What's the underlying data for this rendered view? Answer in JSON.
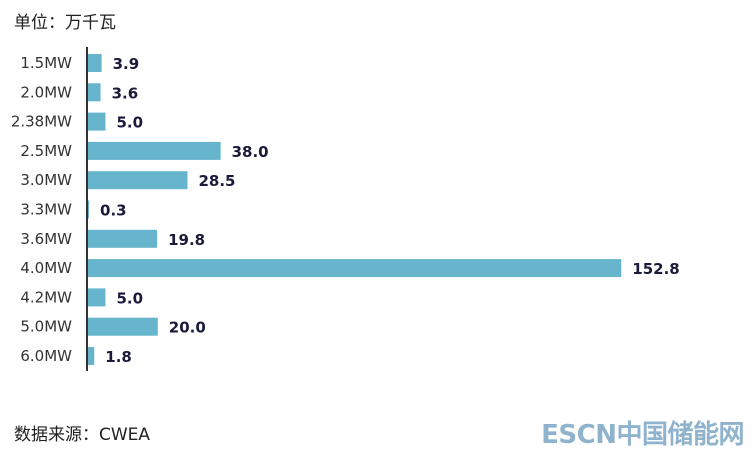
{
  "unit_label": "单位：万千瓦",
  "source_label": "数据来源：CWEA",
  "watermark": "ESCN中国储能网",
  "colors": {
    "bar": "#66b5cc",
    "axis": "#333333"
  },
  "chart_data": {
    "type": "bar",
    "orientation": "horizontal",
    "categories": [
      "1.5MW",
      "2.0MW",
      "2.38MW",
      "2.5MW",
      "3.0MW",
      "3.3MW",
      "3.6MW",
      "4.0MW",
      "4.2MW",
      "5.0MW",
      "6.0MW"
    ],
    "values": [
      3.9,
      3.6,
      5.0,
      38.0,
      28.5,
      0.3,
      19.8,
      152.8,
      5.0,
      20.0,
      1.8
    ],
    "value_labels": [
      "3.9",
      "3.6",
      "5.0",
      "38.0",
      "28.5",
      "0.3",
      "19.8",
      "152.8",
      "5.0",
      "20.0",
      "1.8"
    ],
    "grid": false
  }
}
